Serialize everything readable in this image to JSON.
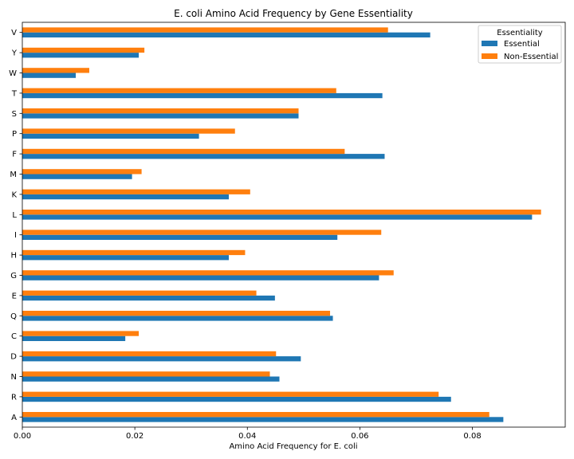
{
  "chart_data": {
    "type": "bar",
    "orientation": "horizontal",
    "title": "E. coli Amino Acid Frequency by Gene Essentiality",
    "xlabel": "Amino Acid Frequency for E. coli",
    "ylabel": "",
    "xlim": [
      0,
      0.0965
    ],
    "xticks": [
      0.0,
      0.02,
      0.04,
      0.06,
      0.08
    ],
    "xtick_labels": [
      "0.00",
      "0.02",
      "0.04",
      "0.06",
      "0.08"
    ],
    "categories": [
      "A",
      "R",
      "N",
      "D",
      "C",
      "Q",
      "E",
      "G",
      "H",
      "I",
      "L",
      "K",
      "M",
      "F",
      "P",
      "S",
      "T",
      "W",
      "Y",
      "V"
    ],
    "legend": {
      "title": "Essentiality",
      "position": "top-right"
    },
    "grid": false,
    "series": [
      {
        "name": "Essential",
        "color": "#1f77b4",
        "values": [
          0.0855,
          0.0762,
          0.0457,
          0.0495,
          0.0183,
          0.0552,
          0.0449,
          0.0634,
          0.0367,
          0.056,
          0.0906,
          0.0367,
          0.0195,
          0.0644,
          0.0314,
          0.0491,
          0.064,
          0.0095,
          0.0207,
          0.0725
        ]
      },
      {
        "name": "Non-Essential",
        "color": "#ff7f0e",
        "values": [
          0.083,
          0.074,
          0.044,
          0.0451,
          0.0207,
          0.0547,
          0.0416,
          0.066,
          0.0396,
          0.0638,
          0.0922,
          0.0405,
          0.0212,
          0.0573,
          0.0378,
          0.0491,
          0.0558,
          0.0119,
          0.0217,
          0.065
        ]
      }
    ]
  }
}
